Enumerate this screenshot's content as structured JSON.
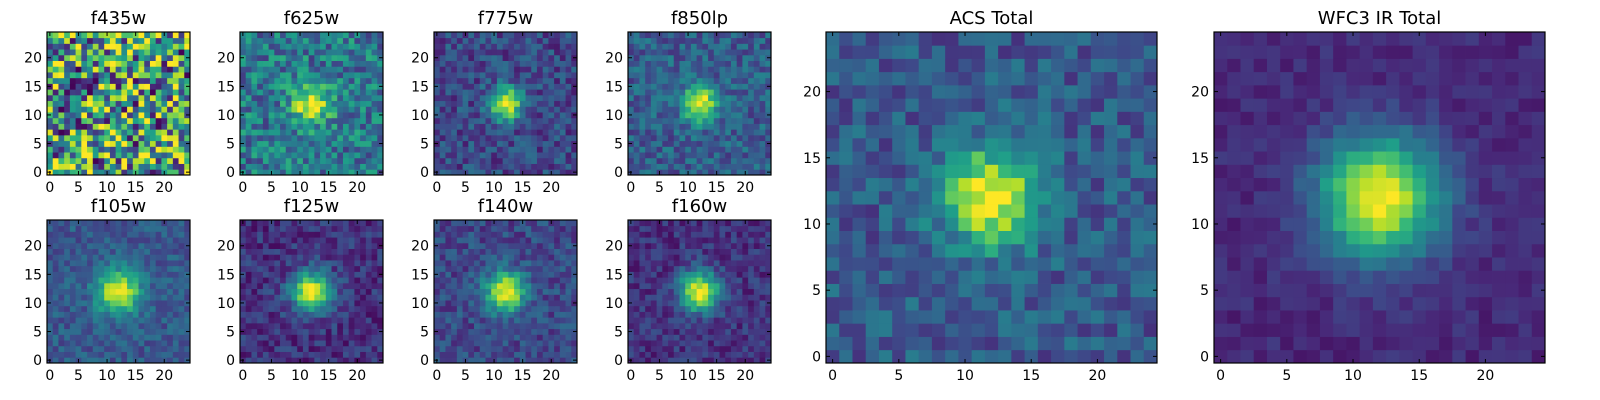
{
  "chart_data": [
    {
      "type": "heatmap",
      "title": "f435w",
      "xlabel": "",
      "ylabel": "",
      "xlim": [
        0,
        24
      ],
      "ylim": [
        0,
        24
      ],
      "xticks": [
        0,
        5,
        10,
        15,
        20
      ],
      "yticks": [
        0,
        5,
        10,
        15,
        20
      ],
      "grid_size": 25,
      "colormap": "viridis",
      "source_center": null,
      "description_of_values": "noise-dominated pixels"
    },
    {
      "type": "heatmap",
      "title": "f625w",
      "xlabel": "",
      "ylabel": "",
      "xlim": [
        0,
        24
      ],
      "ylim": [
        0,
        24
      ],
      "xticks": [
        0,
        5,
        10,
        15,
        20
      ],
      "yticks": [
        0,
        5,
        10,
        15,
        20
      ],
      "grid_size": 25,
      "colormap": "viridis",
      "source_center": [
        12,
        12
      ]
    },
    {
      "type": "heatmap",
      "title": "f775w",
      "xlabel": "",
      "ylabel": "",
      "xlim": [
        0,
        24
      ],
      "ylim": [
        0,
        24
      ],
      "xticks": [
        0,
        5,
        10,
        15,
        20
      ],
      "yticks": [
        0,
        5,
        10,
        15,
        20
      ],
      "grid_size": 25,
      "colormap": "viridis",
      "source_center": [
        12,
        12
      ]
    },
    {
      "type": "heatmap",
      "title": "f850lp",
      "xlabel": "",
      "ylabel": "",
      "xlim": [
        0,
        24
      ],
      "ylim": [
        0,
        24
      ],
      "xticks": [
        0,
        5,
        10,
        15,
        20
      ],
      "yticks": [
        0,
        5,
        10,
        15,
        20
      ],
      "grid_size": 25,
      "colormap": "viridis",
      "source_center": [
        12,
        12
      ]
    },
    {
      "type": "heatmap",
      "title": "f105w",
      "xlabel": "",
      "ylabel": "",
      "xlim": [
        0,
        24
      ],
      "ylim": [
        0,
        24
      ],
      "xticks": [
        0,
        5,
        10,
        15,
        20
      ],
      "yticks": [
        0,
        5,
        10,
        15,
        20
      ],
      "grid_size": 25,
      "colormap": "viridis",
      "source_center": [
        12,
        12
      ]
    },
    {
      "type": "heatmap",
      "title": "f125w",
      "xlabel": "",
      "ylabel": "",
      "xlim": [
        0,
        24
      ],
      "ylim": [
        0,
        24
      ],
      "xticks": [
        0,
        5,
        10,
        15,
        20
      ],
      "yticks": [
        0,
        5,
        10,
        15,
        20
      ],
      "grid_size": 25,
      "colormap": "viridis",
      "source_center": [
        12,
        12
      ]
    },
    {
      "type": "heatmap",
      "title": "f140w",
      "xlabel": "",
      "ylabel": "",
      "xlim": [
        0,
        24
      ],
      "ylim": [
        0,
        24
      ],
      "xticks": [
        0,
        5,
        10,
        15,
        20
      ],
      "yticks": [
        0,
        5,
        10,
        15,
        20
      ],
      "grid_size": 25,
      "colormap": "viridis",
      "source_center": [
        12,
        12
      ]
    },
    {
      "type": "heatmap",
      "title": "f160w",
      "xlabel": "",
      "ylabel": "",
      "xlim": [
        0,
        24
      ],
      "ylim": [
        0,
        24
      ],
      "xticks": [
        0,
        5,
        10,
        15,
        20
      ],
      "yticks": [
        0,
        5,
        10,
        15,
        20
      ],
      "grid_size": 25,
      "colormap": "viridis",
      "source_center": [
        12,
        12
      ]
    },
    {
      "type": "heatmap",
      "title": "ACS Total",
      "xlabel": "",
      "ylabel": "",
      "xlim": [
        0,
        24
      ],
      "ylim": [
        0,
        24
      ],
      "xticks": [
        0,
        5,
        10,
        15,
        20
      ],
      "yticks": [
        0,
        5,
        10,
        15,
        20
      ],
      "grid_size": 25,
      "colormap": "viridis",
      "source_center": [
        12,
        12
      ]
    },
    {
      "type": "heatmap",
      "title": "WFC3 IR Total",
      "xlabel": "",
      "ylabel": "",
      "xlim": [
        0,
        24
      ],
      "ylim": [
        0,
        24
      ],
      "xticks": [
        0,
        5,
        10,
        15,
        20
      ],
      "yticks": [
        0,
        5,
        10,
        15,
        20
      ],
      "grid_size": 25,
      "colormap": "viridis",
      "source_center": [
        12,
        12
      ]
    }
  ],
  "colors": {
    "viridis_stops": [
      "#440154",
      "#482878",
      "#3e4989",
      "#31688e",
      "#26828e",
      "#1f9e89",
      "#35b779",
      "#6ece58",
      "#b5de2b",
      "#fde725"
    ]
  }
}
